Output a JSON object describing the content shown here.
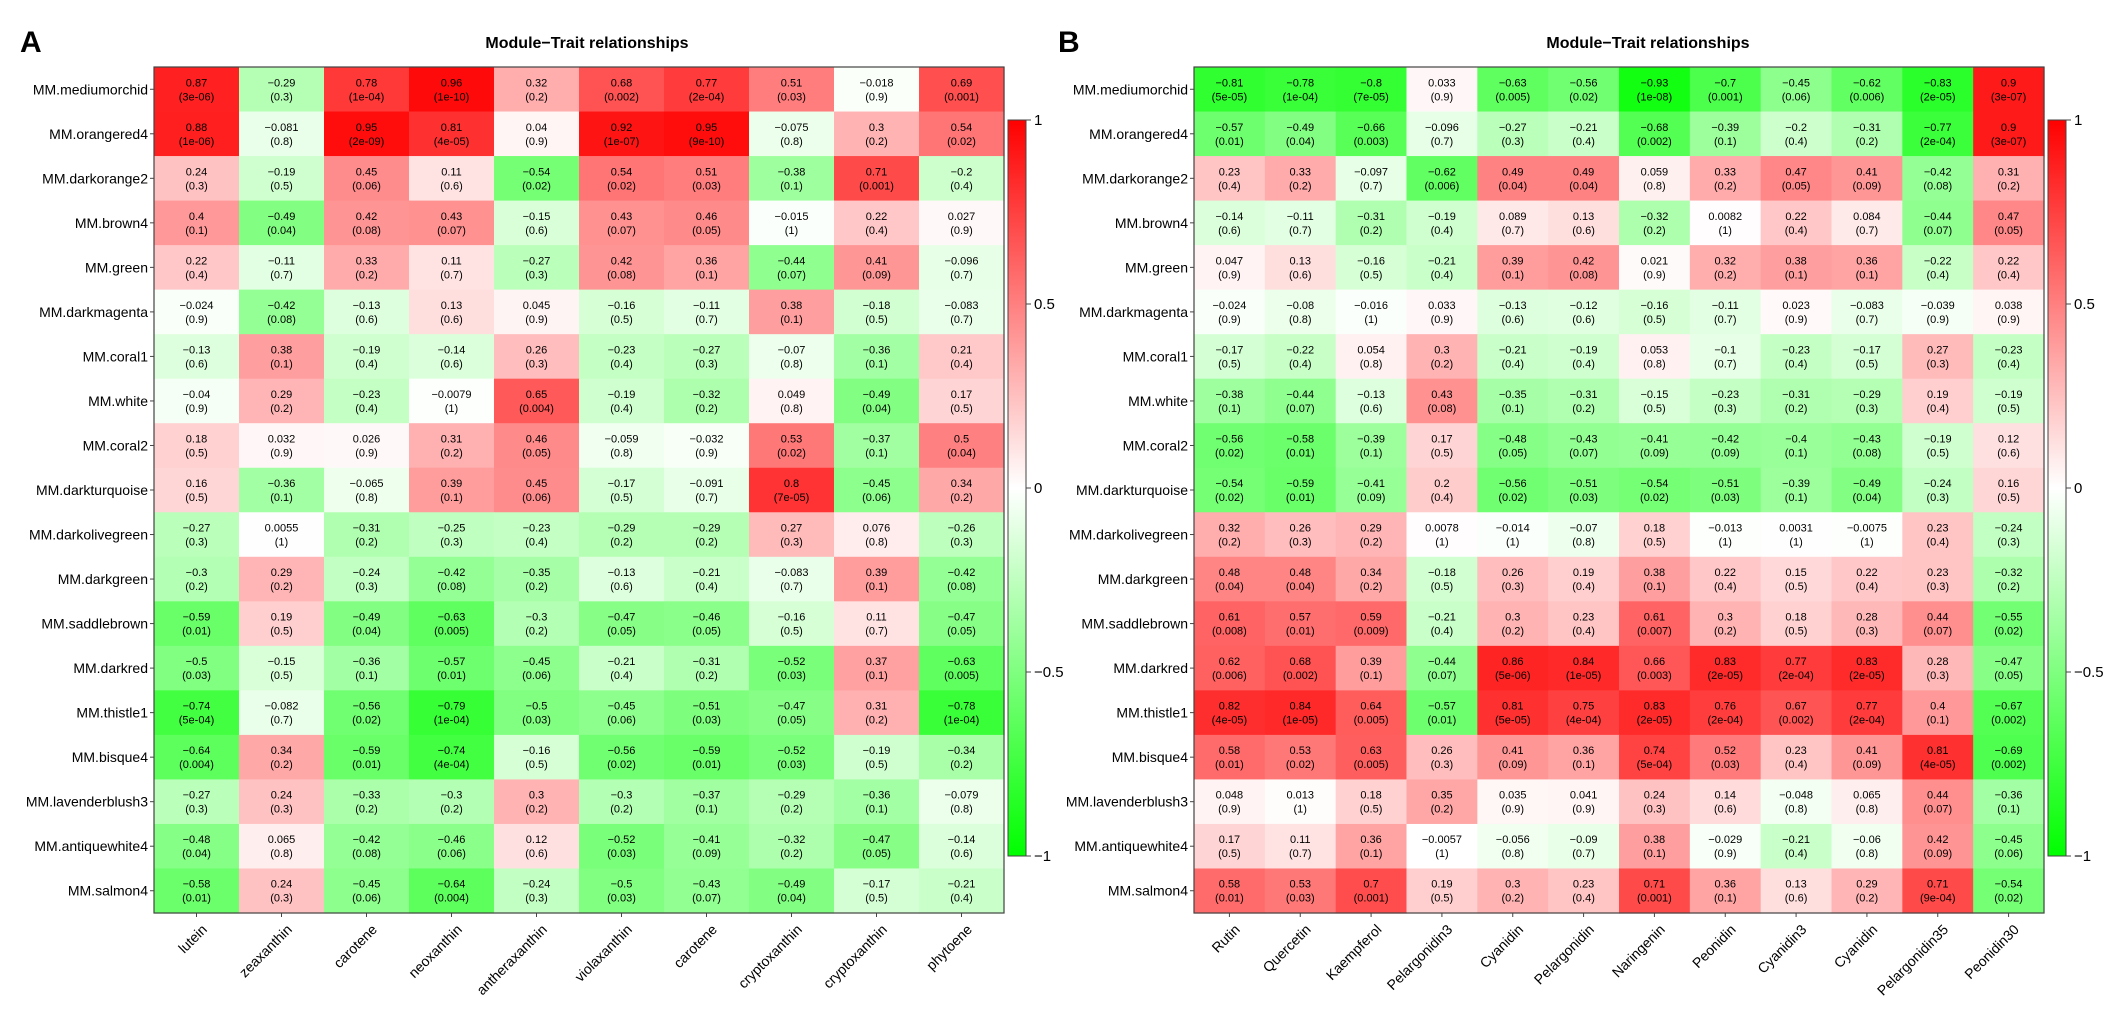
{
  "colors": {
    "negative": "#00ff00",
    "neutral": "#ffffff",
    "positive": "#ff0000",
    "border": "#444444",
    "text": "#000000"
  },
  "chart_data": [
    {
      "type": "heatmap",
      "panel_label": "A",
      "title": "Module−Trait relationships",
      "rows": [
        "MM.mediumorchid",
        "MM.orangered4",
        "MM.darkorange2",
        "MM.brown4",
        "MM.green",
        "MM.darkmagenta",
        "MM.coral1",
        "MM.white",
        "MM.coral2",
        "MM.darkturquoise",
        "MM.darkolivegreen",
        "MM.darkgreen",
        "MM.saddlebrown",
        "MM.darkred",
        "MM.thistle1",
        "MM.bisque4",
        "MM.lavenderblush3",
        "MM.antiquewhite4",
        "MM.salmon4"
      ],
      "columns": [
        "lutein",
        "zeaxanthin",
        "carotene",
        "neoxanthin",
        "antheraxanthin",
        "violaxanthin",
        "carotene",
        "cryptoxanthin",
        "cryptoxanthin",
        "phytoene"
      ],
      "values": [
        [
          0.87,
          -0.29,
          0.78,
          0.96,
          0.32,
          0.68,
          0.77,
          0.51,
          -0.018,
          0.69
        ],
        [
          0.88,
          -0.081,
          0.95,
          0.81,
          0.04,
          0.92,
          0.95,
          -0.075,
          0.3,
          0.54
        ],
        [
          0.24,
          -0.19,
          0.45,
          0.11,
          -0.54,
          0.54,
          0.51,
          -0.38,
          0.71,
          -0.2
        ],
        [
          0.4,
          -0.49,
          0.42,
          0.43,
          -0.15,
          0.43,
          0.46,
          -0.015,
          0.22,
          0.027
        ],
        [
          0.22,
          -0.11,
          0.33,
          0.11,
          -0.27,
          0.42,
          0.36,
          -0.44,
          0.41,
          -0.096
        ],
        [
          -0.024,
          -0.42,
          -0.13,
          0.13,
          0.045,
          -0.16,
          -0.11,
          0.38,
          -0.18,
          -0.083
        ],
        [
          -0.13,
          0.38,
          -0.19,
          -0.14,
          0.26,
          -0.23,
          -0.27,
          -0.07,
          -0.36,
          0.21
        ],
        [
          -0.04,
          0.29,
          -0.23,
          -0.0079,
          0.65,
          -0.19,
          -0.32,
          0.049,
          -0.49,
          0.17
        ],
        [
          0.18,
          0.032,
          0.026,
          0.31,
          0.46,
          -0.059,
          -0.032,
          0.53,
          -0.37,
          0.5
        ],
        [
          0.16,
          -0.36,
          -0.065,
          0.39,
          0.45,
          -0.17,
          -0.091,
          0.8,
          -0.45,
          0.34
        ],
        [
          -0.27,
          0.0055,
          -0.31,
          -0.25,
          -0.23,
          -0.29,
          -0.29,
          0.27,
          0.076,
          -0.26
        ],
        [
          -0.3,
          0.29,
          -0.24,
          -0.42,
          -0.35,
          -0.13,
          -0.21,
          -0.083,
          0.39,
          -0.42
        ],
        [
          -0.59,
          0.19,
          -0.49,
          -0.63,
          -0.3,
          -0.47,
          -0.46,
          -0.16,
          0.11,
          -0.47
        ],
        [
          -0.5,
          -0.15,
          -0.36,
          -0.57,
          -0.45,
          -0.21,
          -0.31,
          -0.52,
          0.37,
          -0.63
        ],
        [
          -0.74,
          -0.082,
          -0.56,
          -0.79,
          -0.5,
          -0.45,
          -0.51,
          -0.47,
          0.31,
          -0.78
        ],
        [
          -0.64,
          0.34,
          -0.59,
          -0.74,
          -0.16,
          -0.56,
          -0.59,
          -0.52,
          -0.19,
          -0.34
        ],
        [
          -0.27,
          0.24,
          -0.33,
          -0.3,
          0.3,
          -0.3,
          -0.37,
          -0.29,
          -0.36,
          -0.079
        ],
        [
          -0.48,
          0.065,
          -0.42,
          -0.46,
          0.12,
          -0.52,
          -0.41,
          -0.32,
          -0.47,
          -0.14
        ],
        [
          -0.58,
          0.24,
          -0.45,
          -0.64,
          -0.24,
          -0.5,
          -0.43,
          -0.49,
          -0.17,
          -0.21
        ]
      ],
      "pvalues": [
        [
          "(3e-06)",
          "(0.3)",
          "(1e-04)",
          "(1e-10)",
          "(0.2)",
          "(0.002)",
          "(2e-04)",
          "(0.03)",
          "(0.9)",
          "(0.001)"
        ],
        [
          "(1e-06)",
          "(0.8)",
          "(2e-09)",
          "(4e-05)",
          "(0.9)",
          "(1e-07)",
          "(9e-10)",
          "(0.8)",
          "(0.2)",
          "(0.02)"
        ],
        [
          "(0.3)",
          "(0.5)",
          "(0.06)",
          "(0.6)",
          "(0.02)",
          "(0.02)",
          "(0.03)",
          "(0.1)",
          "(0.001)",
          "(0.4)"
        ],
        [
          "(0.1)",
          "(0.04)",
          "(0.08)",
          "(0.07)",
          "(0.6)",
          "(0.07)",
          "(0.05)",
          "(1)",
          "(0.4)",
          "(0.9)"
        ],
        [
          "(0.4)",
          "(0.7)",
          "(0.2)",
          "(0.7)",
          "(0.3)",
          "(0.08)",
          "(0.1)",
          "(0.07)",
          "(0.09)",
          "(0.7)"
        ],
        [
          "(0.9)",
          "(0.08)",
          "(0.6)",
          "(0.6)",
          "(0.9)",
          "(0.5)",
          "(0.7)",
          "(0.1)",
          "(0.5)",
          "(0.7)"
        ],
        [
          "(0.6)",
          "(0.1)",
          "(0.4)",
          "(0.6)",
          "(0.3)",
          "(0.4)",
          "(0.3)",
          "(0.8)",
          "(0.1)",
          "(0.4)"
        ],
        [
          "(0.9)",
          "(0.2)",
          "(0.4)",
          "(1)",
          "(0.004)",
          "(0.4)",
          "(0.2)",
          "(0.8)",
          "(0.04)",
          "(0.5)"
        ],
        [
          "(0.5)",
          "(0.9)",
          "(0.9)",
          "(0.2)",
          "(0.05)",
          "(0.8)",
          "(0.9)",
          "(0.02)",
          "(0.1)",
          "(0.04)"
        ],
        [
          "(0.5)",
          "(0.1)",
          "(0.8)",
          "(0.1)",
          "(0.06)",
          "(0.5)",
          "(0.7)",
          "(7e-05)",
          "(0.06)",
          "(0.2)"
        ],
        [
          "(0.3)",
          "(1)",
          "(0.2)",
          "(0.3)",
          "(0.4)",
          "(0.2)",
          "(0.2)",
          "(0.3)",
          "(0.8)",
          "(0.3)"
        ],
        [
          "(0.2)",
          "(0.2)",
          "(0.3)",
          "(0.08)",
          "(0.2)",
          "(0.6)",
          "(0.4)",
          "(0.7)",
          "(0.1)",
          "(0.08)"
        ],
        [
          "(0.01)",
          "(0.5)",
          "(0.04)",
          "(0.005)",
          "(0.2)",
          "(0.05)",
          "(0.05)",
          "(0.5)",
          "(0.7)",
          "(0.05)"
        ],
        [
          "(0.03)",
          "(0.5)",
          "(0.1)",
          "(0.01)",
          "(0.06)",
          "(0.4)",
          "(0.2)",
          "(0.03)",
          "(0.1)",
          "(0.005)"
        ],
        [
          "(5e-04)",
          "(0.7)",
          "(0.02)",
          "(1e-04)",
          "(0.03)",
          "(0.06)",
          "(0.03)",
          "(0.05)",
          "(0.2)",
          "(1e-04)"
        ],
        [
          "(0.004)",
          "(0.2)",
          "(0.01)",
          "(4e-04)",
          "(0.5)",
          "(0.02)",
          "(0.01)",
          "(0.03)",
          "(0.5)",
          "(0.2)"
        ],
        [
          "(0.3)",
          "(0.3)",
          "(0.2)",
          "(0.2)",
          "(0.2)",
          "(0.2)",
          "(0.1)",
          "(0.2)",
          "(0.1)",
          "(0.8)"
        ],
        [
          "(0.04)",
          "(0.8)",
          "(0.08)",
          "(0.06)",
          "(0.6)",
          "(0.03)",
          "(0.09)",
          "(0.2)",
          "(0.05)",
          "(0.6)"
        ],
        [
          "(0.01)",
          "(0.3)",
          "(0.06)",
          "(0.004)",
          "(0.3)",
          "(0.03)",
          "(0.07)",
          "(0.04)",
          "(0.5)",
          "(0.4)"
        ]
      ],
      "colorbar": {
        "range": [
          -1,
          1
        ],
        "ticks": [
          "1",
          "0.5",
          "0",
          "−0.5",
          "−1"
        ]
      }
    },
    {
      "type": "heatmap",
      "panel_label": "B",
      "title": "Module−Trait relationships",
      "rows": [
        "MM.mediumorchid",
        "MM.orangered4",
        "MM.darkorange2",
        "MM.brown4",
        "MM.green",
        "MM.darkmagenta",
        "MM.coral1",
        "MM.white",
        "MM.coral2",
        "MM.darkturquoise",
        "MM.darkolivegreen",
        "MM.darkgreen",
        "MM.saddlebrown",
        "MM.darkred",
        "MM.thistle1",
        "MM.bisque4",
        "MM.lavenderblush3",
        "MM.antiquewhite4",
        "MM.salmon4"
      ],
      "columns": [
        "Rutin",
        "Quercetin",
        "Kaempferol",
        "Pelargonidin3",
        "Cyanidin",
        "Pelargonidin",
        "Naringenin",
        "Peonidin",
        "Cyanidin3",
        "Cyanidin",
        "Pelargonidin35",
        "Peonidin30"
      ],
      "values": [
        [
          -0.81,
          -0.78,
          -0.8,
          0.033,
          -0.63,
          -0.56,
          -0.93,
          -0.7,
          -0.45,
          -0.62,
          -0.83,
          0.9
        ],
        [
          -0.57,
          -0.49,
          -0.66,
          -0.096,
          -0.27,
          -0.21,
          -0.68,
          -0.39,
          -0.2,
          -0.31,
          -0.77,
          0.9
        ],
        [
          0.23,
          0.33,
          -0.097,
          -0.62,
          0.49,
          0.49,
          0.059,
          0.33,
          0.47,
          0.41,
          -0.42,
          0.31
        ],
        [
          -0.14,
          -0.11,
          -0.31,
          -0.19,
          0.089,
          0.13,
          -0.32,
          0.0082,
          0.22,
          0.084,
          -0.44,
          0.47
        ],
        [
          0.047,
          0.13,
          -0.16,
          -0.21,
          0.39,
          0.42,
          0.021,
          0.32,
          0.38,
          0.36,
          -0.22,
          0.22
        ],
        [
          -0.024,
          -0.08,
          -0.016,
          0.033,
          -0.13,
          -0.12,
          -0.16,
          -0.11,
          0.023,
          -0.083,
          -0.039,
          0.038
        ],
        [
          -0.17,
          -0.22,
          0.054,
          0.3,
          -0.21,
          -0.19,
          0.053,
          -0.1,
          -0.23,
          -0.17,
          0.27,
          -0.23
        ],
        [
          -0.38,
          -0.44,
          -0.13,
          0.43,
          -0.35,
          -0.31,
          -0.15,
          -0.23,
          -0.31,
          -0.29,
          0.19,
          -0.19
        ],
        [
          -0.56,
          -0.58,
          -0.39,
          0.17,
          -0.48,
          -0.43,
          -0.41,
          -0.42,
          -0.4,
          -0.43,
          -0.19,
          0.12
        ],
        [
          -0.54,
          -0.59,
          -0.41,
          0.2,
          -0.56,
          -0.51,
          -0.54,
          -0.51,
          -0.39,
          -0.49,
          -0.24,
          0.16
        ],
        [
          0.32,
          0.26,
          0.29,
          0.0078,
          -0.014,
          -0.07,
          0.18,
          -0.013,
          0.0031,
          -0.0075,
          0.23,
          -0.24
        ],
        [
          0.48,
          0.48,
          0.34,
          -0.18,
          0.26,
          0.19,
          0.38,
          0.22,
          0.15,
          0.22,
          0.23,
          -0.32
        ],
        [
          0.61,
          0.57,
          0.59,
          -0.21,
          0.3,
          0.23,
          0.61,
          0.3,
          0.18,
          0.28,
          0.44,
          -0.55
        ],
        [
          0.62,
          0.68,
          0.39,
          -0.44,
          0.86,
          0.84,
          0.66,
          0.83,
          0.77,
          0.83,
          0.28,
          -0.47
        ],
        [
          0.82,
          0.84,
          0.64,
          -0.57,
          0.81,
          0.75,
          0.83,
          0.76,
          0.67,
          0.77,
          0.4,
          -0.67
        ],
        [
          0.58,
          0.53,
          0.63,
          0.26,
          0.41,
          0.36,
          0.74,
          0.52,
          0.23,
          0.41,
          0.81,
          -0.69
        ],
        [
          0.048,
          0.013,
          0.18,
          0.35,
          0.035,
          0.041,
          0.24,
          0.14,
          -0.048,
          0.065,
          0.44,
          -0.36
        ],
        [
          0.17,
          0.11,
          0.36,
          -0.0057,
          -0.056,
          -0.09,
          0.38,
          -0.029,
          -0.21,
          -0.06,
          0.42,
          -0.45
        ],
        [
          0.58,
          0.53,
          0.7,
          0.19,
          0.3,
          0.23,
          0.71,
          0.36,
          0.13,
          0.29,
          0.71,
          -0.54
        ]
      ],
      "pvalues": [
        [
          "(5e-05)",
          "(1e-04)",
          "(7e-05)",
          "(0.9)",
          "(0.005)",
          "(0.02)",
          "(1e-08)",
          "(0.001)",
          "(0.06)",
          "(0.006)",
          "(2e-05)",
          "(3e-07)"
        ],
        [
          "(0.01)",
          "(0.04)",
          "(0.003)",
          "(0.7)",
          "(0.3)",
          "(0.4)",
          "(0.002)",
          "(0.1)",
          "(0.4)",
          "(0.2)",
          "(2e-04)",
          "(3e-07)"
        ],
        [
          "(0.4)",
          "(0.2)",
          "(0.7)",
          "(0.006)",
          "(0.04)",
          "(0.04)",
          "(0.8)",
          "(0.2)",
          "(0.05)",
          "(0.09)",
          "(0.08)",
          "(0.2)"
        ],
        [
          "(0.6)",
          "(0.7)",
          "(0.2)",
          "(0.4)",
          "(0.7)",
          "(0.6)",
          "(0.2)",
          "(1)",
          "(0.4)",
          "(0.7)",
          "(0.07)",
          "(0.05)"
        ],
        [
          "(0.9)",
          "(0.6)",
          "(0.5)",
          "(0.4)",
          "(0.1)",
          "(0.08)",
          "(0.9)",
          "(0.2)",
          "(0.1)",
          "(0.1)",
          "(0.4)",
          "(0.4)"
        ],
        [
          "(0.9)",
          "(0.8)",
          "(1)",
          "(0.9)",
          "(0.6)",
          "(0.6)",
          "(0.5)",
          "(0.7)",
          "(0.9)",
          "(0.7)",
          "(0.9)",
          "(0.9)"
        ],
        [
          "(0.5)",
          "(0.4)",
          "(0.8)",
          "(0.2)",
          "(0.4)",
          "(0.4)",
          "(0.8)",
          "(0.7)",
          "(0.4)",
          "(0.5)",
          "(0.3)",
          "(0.4)"
        ],
        [
          "(0.1)",
          "(0.07)",
          "(0.6)",
          "(0.08)",
          "(0.1)",
          "(0.2)",
          "(0.5)",
          "(0.3)",
          "(0.2)",
          "(0.3)",
          "(0.4)",
          "(0.5)"
        ],
        [
          "(0.02)",
          "(0.01)",
          "(0.1)",
          "(0.5)",
          "(0.05)",
          "(0.07)",
          "(0.09)",
          "(0.09)",
          "(0.1)",
          "(0.08)",
          "(0.5)",
          "(0.6)"
        ],
        [
          "(0.02)",
          "(0.01)",
          "(0.09)",
          "(0.4)",
          "(0.02)",
          "(0.03)",
          "(0.02)",
          "(0.03)",
          "(0.1)",
          "(0.04)",
          "(0.3)",
          "(0.5)"
        ],
        [
          "(0.2)",
          "(0.3)",
          "(0.2)",
          "(1)",
          "(1)",
          "(0.8)",
          "(0.5)",
          "(1)",
          "(1)",
          "(1)",
          "(0.4)",
          "(0.3)"
        ],
        [
          "(0.04)",
          "(0.04)",
          "(0.2)",
          "(0.5)",
          "(0.3)",
          "(0.4)",
          "(0.1)",
          "(0.4)",
          "(0.5)",
          "(0.4)",
          "(0.3)",
          "(0.2)"
        ],
        [
          "(0.008)",
          "(0.01)",
          "(0.009)",
          "(0.4)",
          "(0.2)",
          "(0.4)",
          "(0.007)",
          "(0.2)",
          "(0.5)",
          "(0.3)",
          "(0.07)",
          "(0.02)"
        ],
        [
          "(0.006)",
          "(0.002)",
          "(0.1)",
          "(0.07)",
          "(5e-06)",
          "(1e-05)",
          "(0.003)",
          "(2e-05)",
          "(2e-04)",
          "(2e-05)",
          "(0.3)",
          "(0.05)"
        ],
        [
          "(4e-05)",
          "(1e-05)",
          "(0.005)",
          "(0.01)",
          "(5e-05)",
          "(4e-04)",
          "(2e-05)",
          "(2e-04)",
          "(0.002)",
          "(2e-04)",
          "(0.1)",
          "(0.002)"
        ],
        [
          "(0.01)",
          "(0.02)",
          "(0.005)",
          "(0.3)",
          "(0.09)",
          "(0.1)",
          "(5e-04)",
          "(0.03)",
          "(0.4)",
          "(0.09)",
          "(4e-05)",
          "(0.002)"
        ],
        [
          "(0.9)",
          "(1)",
          "(0.5)",
          "(0.2)",
          "(0.9)",
          "(0.9)",
          "(0.3)",
          "(0.6)",
          "(0.8)",
          "(0.8)",
          "(0.07)",
          "(0.1)"
        ],
        [
          "(0.5)",
          "(0.7)",
          "(0.1)",
          "(1)",
          "(0.8)",
          "(0.7)",
          "(0.1)",
          "(0.9)",
          "(0.4)",
          "(0.8)",
          "(0.09)",
          "(0.06)"
        ],
        [
          "(0.01)",
          "(0.03)",
          "(0.001)",
          "(0.5)",
          "(0.2)",
          "(0.4)",
          "(0.001)",
          "(0.1)",
          "(0.6)",
          "(0.2)",
          "(9e-04)",
          "(0.02)"
        ]
      ],
      "colorbar": {
        "range": [
          -1,
          1
        ],
        "ticks": [
          "1",
          "0.5",
          "0",
          "−0.5",
          "−1"
        ]
      }
    }
  ]
}
